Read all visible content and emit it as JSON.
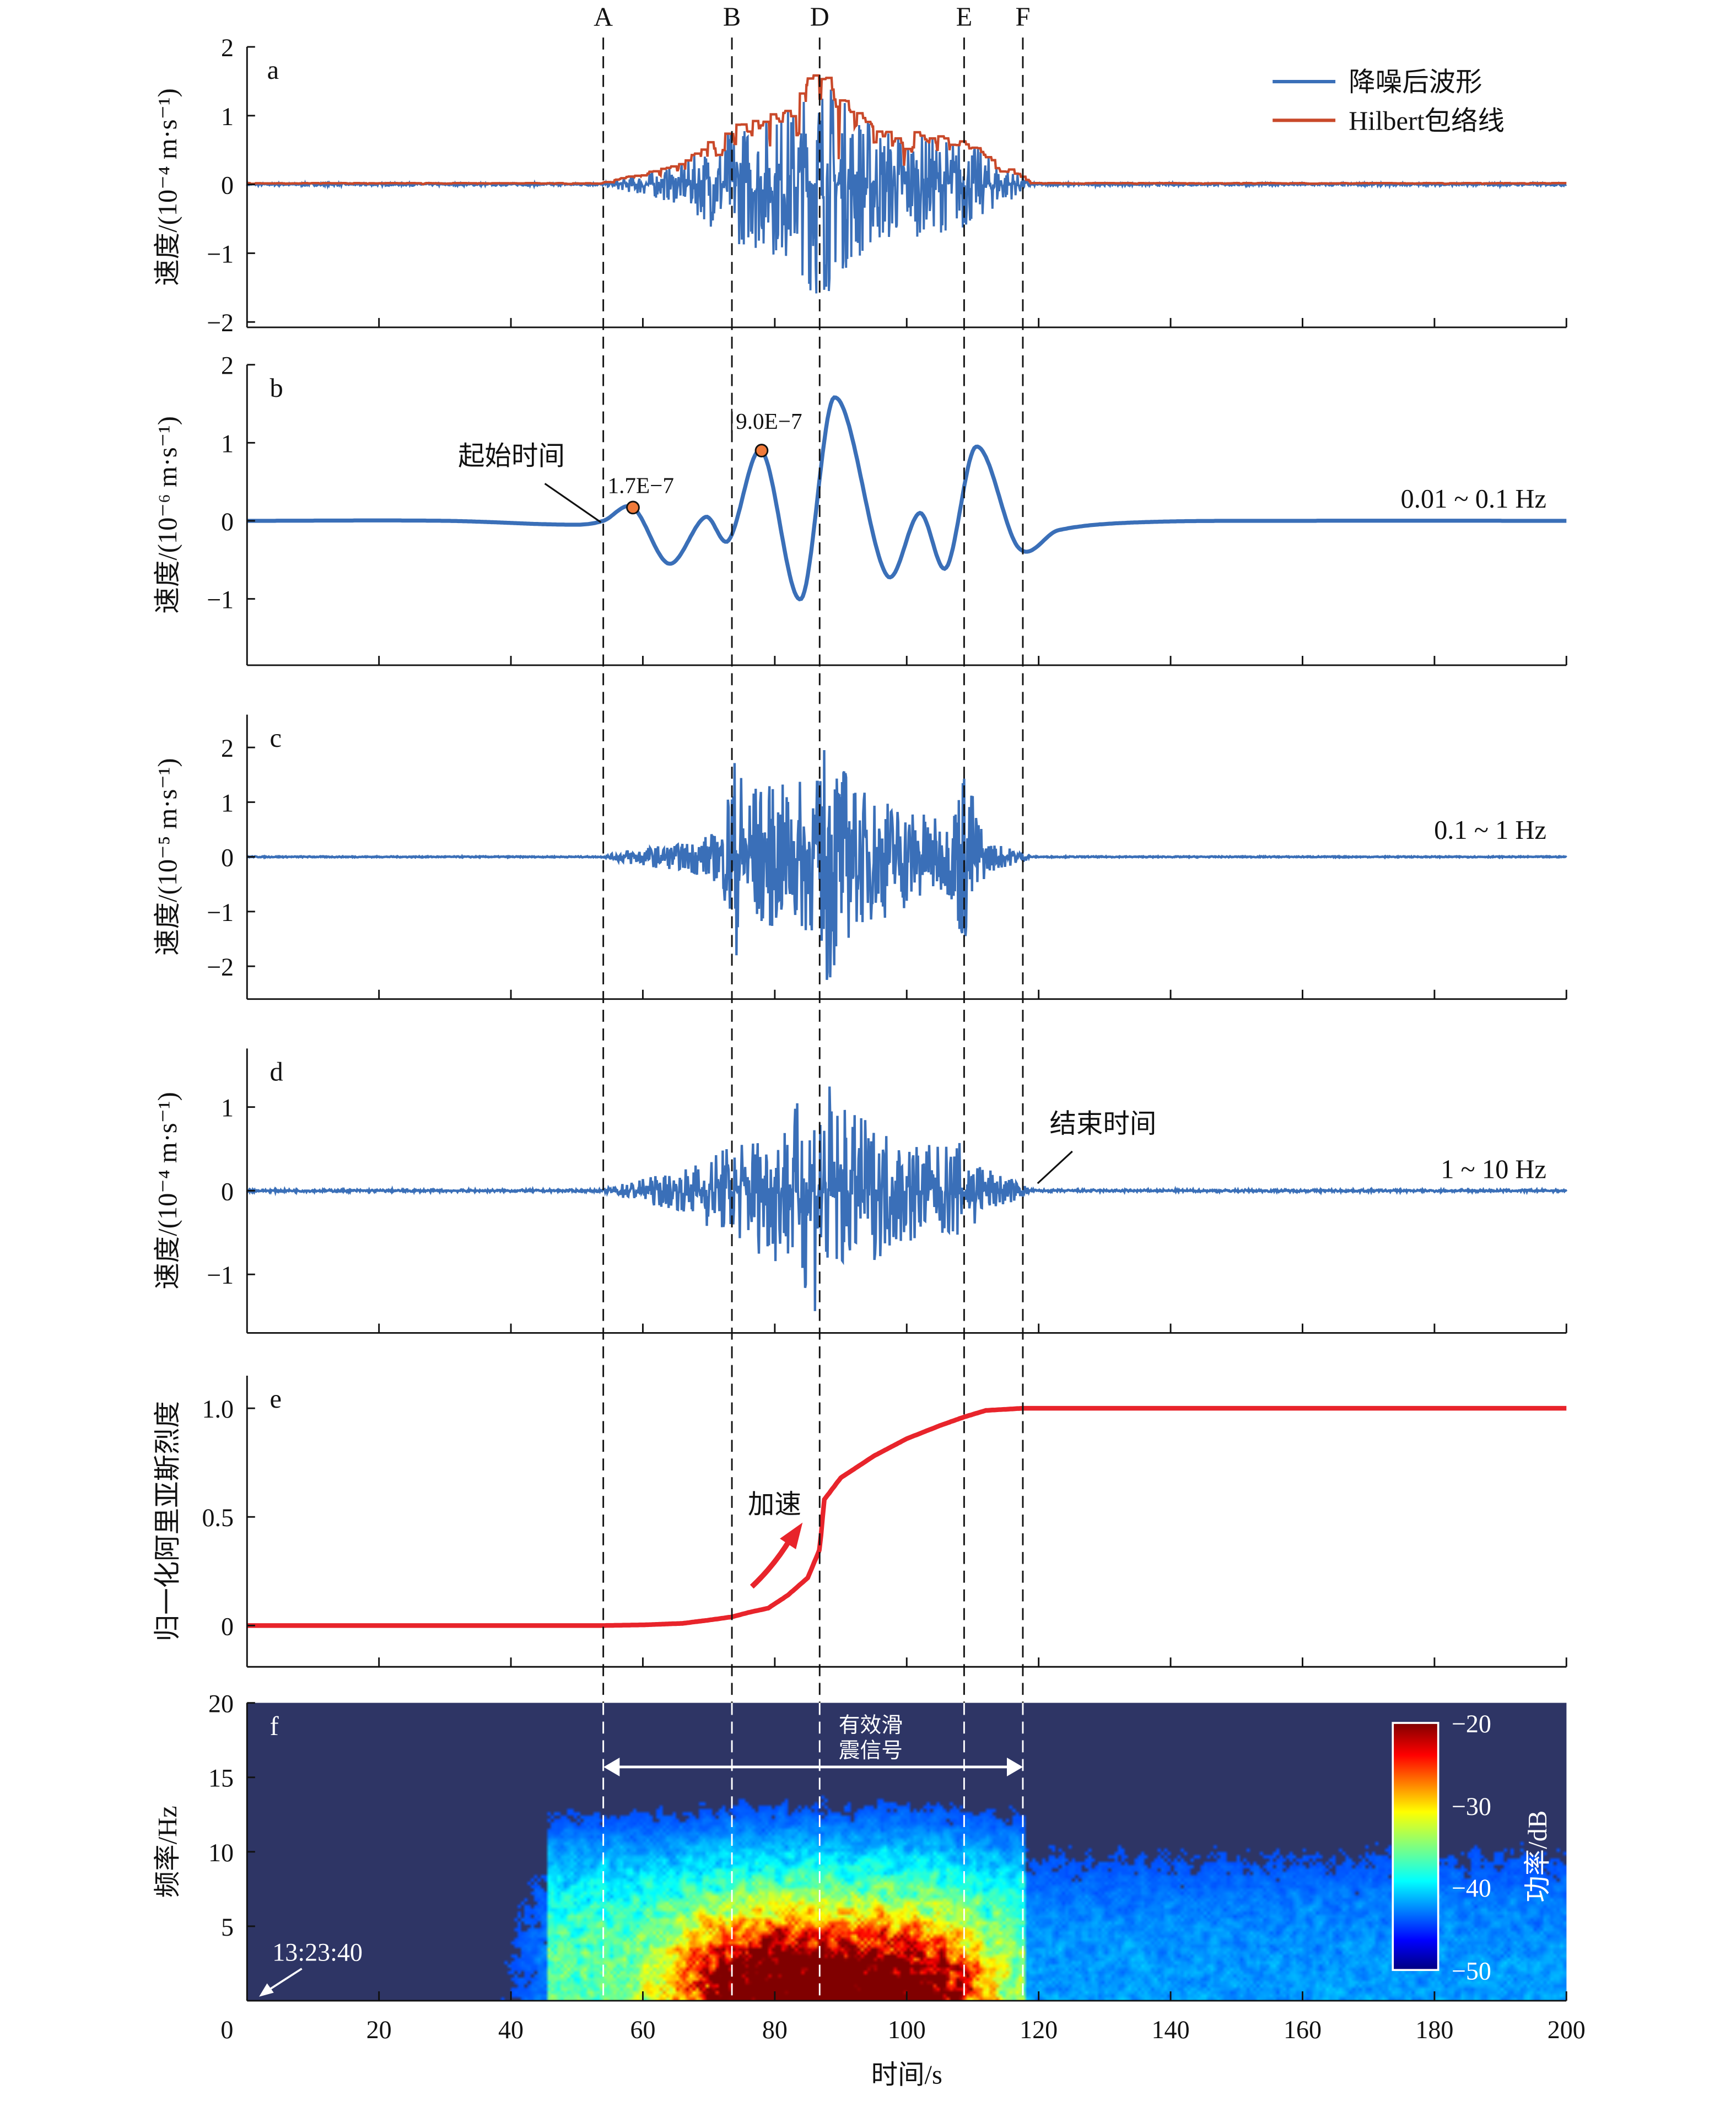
{
  "chart_data": {
    "type": "line",
    "xlabel": "时间/s",
    "xlim": [
      0,
      200
    ],
    "xticks": [
      0,
      20,
      40,
      60,
      80,
      100,
      120,
      140,
      160,
      180,
      200
    ],
    "markers": [
      {
        "label": "A",
        "t": 54
      },
      {
        "label": "B",
        "t": 73.5
      },
      {
        "label": "D",
        "t": 86.8
      },
      {
        "label": "E",
        "t": 108.7
      },
      {
        "label": "F",
        "t": 117.6
      }
    ],
    "panels": [
      {
        "id": "a",
        "ylabel": "速度/(10⁻⁴ m·s⁻¹)",
        "ylim": [
          -2,
          2
        ],
        "yticks": [
          -2,
          -1,
          0,
          1,
          2
        ],
        "ytick_labels": [
          "−2",
          "−1",
          "0",
          "1",
          "2"
        ],
        "legend": [
          "降噪后波形",
          "Hilbert包络线"
        ],
        "legend_position": "top-right",
        "colors": [
          "#3a6fb8",
          "#c9492a"
        ],
        "envelope": [
          [
            0,
            0.02
          ],
          [
            54,
            0.02
          ],
          [
            58,
            0.12
          ],
          [
            66,
            0.3
          ],
          [
            73.5,
            0.85
          ],
          [
            80,
            1.05
          ],
          [
            84,
            1.3
          ],
          [
            86.8,
            1.8
          ],
          [
            90,
            1.3
          ],
          [
            96,
            0.9
          ],
          [
            104,
            0.7
          ],
          [
            108.7,
            0.7
          ],
          [
            112,
            0.45
          ],
          [
            117.6,
            0.12
          ],
          [
            119,
            0.02
          ],
          [
            200,
            0.02
          ]
        ]
      },
      {
        "id": "b",
        "ylabel": "速度/(10⁻⁶ m·s⁻¹)",
        "ylim": [
          -1.85,
          2
        ],
        "yticks": [
          -1,
          0,
          1,
          2
        ],
        "ytick_labels": [
          "−1",
          "0",
          "1",
          "2"
        ],
        "band": "0.01 ~ 0.1 Hz",
        "color": "#3a6fb8",
        "points": [
          [
            0,
            0
          ],
          [
            30,
            0
          ],
          [
            50,
            -0.05
          ],
          [
            54,
            0
          ],
          [
            58.5,
            0.17
          ],
          [
            64,
            -0.55
          ],
          [
            69.5,
            0.05
          ],
          [
            73,
            -0.25
          ],
          [
            78,
            0.9
          ],
          [
            84,
            -1.0
          ],
          [
            89,
            1.58
          ],
          [
            97,
            -0.7
          ],
          [
            102,
            0.1
          ],
          [
            106,
            -0.6
          ],
          [
            110.5,
            0.95
          ],
          [
            117,
            -0.35
          ],
          [
            123,
            -0.12
          ],
          [
            135,
            -0.02
          ],
          [
            160,
            0
          ],
          [
            200,
            0
          ]
        ],
        "annotations": [
          {
            "text": "起始时间"
          },
          {
            "text": "1.7E−7",
            "t": 58.5,
            "v": 0.17
          },
          {
            "text": "9.0E−7",
            "t": 78,
            "v": 0.9
          }
        ]
      },
      {
        "id": "c",
        "ylabel": "速度/(10⁻⁵ m·s⁻¹)",
        "ylim": [
          -2.6,
          2.6
        ],
        "yticks": [
          -2,
          -1,
          0,
          1,
          2
        ],
        "ytick_labels": [
          "−2",
          "−1",
          "0",
          "1",
          "2"
        ],
        "band": "0.1 ~ 1 Hz",
        "color": "#3a6fb8",
        "envelope": [
          [
            0,
            0.01
          ],
          [
            54,
            0.01
          ],
          [
            58,
            0.15
          ],
          [
            66,
            0.25
          ],
          [
            72,
            0.5
          ],
          [
            73.5,
            2.0
          ],
          [
            76,
            1.4
          ],
          [
            80,
            1.3
          ],
          [
            86.8,
            1.5
          ],
          [
            88,
            2.5
          ],
          [
            92,
            1.3
          ],
          [
            100,
            1.0
          ],
          [
            106,
            0.6
          ],
          [
            108.7,
            1.8
          ],
          [
            112,
            0.3
          ],
          [
            117.6,
            0.1
          ],
          [
            119,
            0.01
          ],
          [
            200,
            0.01
          ]
        ]
      },
      {
        "id": "d",
        "ylabel": "速度/(10⁻⁴ m·s⁻¹)",
        "ylim": [
          -1.7,
          1.7
        ],
        "yticks": [
          -1,
          0,
          1
        ],
        "ytick_labels": [
          "−1",
          "0",
          "1"
        ],
        "band": "1 ~ 10 Hz",
        "color": "#3a6fb8",
        "annotation": "结束时间",
        "envelope": [
          [
            0,
            0.015
          ],
          [
            54,
            0.015
          ],
          [
            58,
            0.12
          ],
          [
            66,
            0.25
          ],
          [
            73.5,
            0.6
          ],
          [
            80,
            0.85
          ],
          [
            84,
            1.1
          ],
          [
            86.8,
            1.6
          ],
          [
            90,
            1.0
          ],
          [
            96,
            0.8
          ],
          [
            104,
            0.55
          ],
          [
            108.7,
            0.6
          ],
          [
            112,
            0.3
          ],
          [
            117.6,
            0.08
          ],
          [
            119,
            0.015
          ],
          [
            200,
            0.015
          ]
        ]
      },
      {
        "id": "e",
        "ylabel": "归一化阿里亚斯烈度",
        "ylim": [
          -0.19,
          1.15
        ],
        "yticks": [
          0,
          0.5,
          1.0
        ],
        "ytick_labels": [
          "0",
          "0.5",
          "1.0"
        ],
        "color": "#e8242b",
        "annotation": "加速",
        "points": [
          [
            0,
            0
          ],
          [
            54,
            0
          ],
          [
            60,
            0.003
          ],
          [
            66,
            0.01
          ],
          [
            70,
            0.025
          ],
          [
            73.5,
            0.04
          ],
          [
            76,
            0.06
          ],
          [
            79,
            0.08
          ],
          [
            82,
            0.14
          ],
          [
            85,
            0.22
          ],
          [
            86.8,
            0.35
          ],
          [
            87.5,
            0.58
          ],
          [
            90,
            0.68
          ],
          [
            95,
            0.78
          ],
          [
            100,
            0.86
          ],
          [
            105,
            0.92
          ],
          [
            108.7,
            0.96
          ],
          [
            112,
            0.99
          ],
          [
            117.6,
            1.0
          ],
          [
            200,
            1.0
          ]
        ]
      },
      {
        "id": "f",
        "ylabel": "频率/Hz",
        "ylim": [
          0,
          20
        ],
        "yticks": [
          5,
          10,
          15,
          20
        ],
        "ytick_labels": [
          "5",
          "10",
          "15",
          "20"
        ],
        "type": "heatmap",
        "colorbar": {
          "label": "功率/dB",
          "range": [
            -50,
            -20
          ],
          "ticks": [
            "−20",
            "−30",
            "−40",
            "−50"
          ],
          "colormap": "jet"
        },
        "background": "#2e3565",
        "annotation": [
          "有效滑",
          "震信号"
        ],
        "time_label": "13:23:40",
        "peak_power_db": -20,
        "peak_band_hz": [
          0.5,
          4
        ]
      }
    ]
  }
}
